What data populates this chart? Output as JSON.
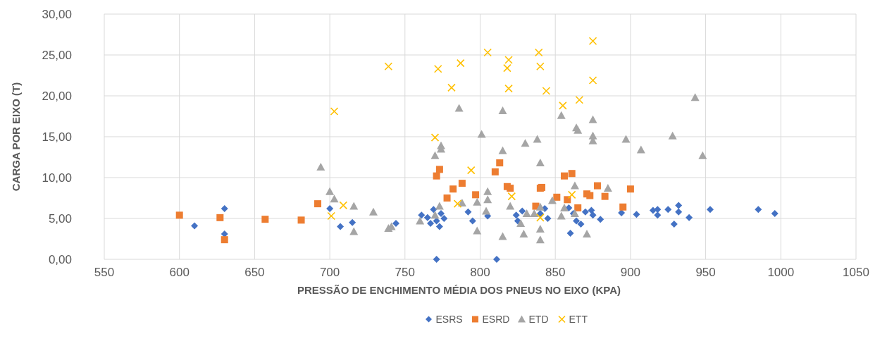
{
  "chart_data": {
    "type": "scatter",
    "xlabel": "PRESSÃO DE ENCHIMENTO MÉDIA DOS PNEUS NO EIXO (KPA)",
    "ylabel": "CARGA POR EIXO (T)",
    "xlim": [
      550,
      1050
    ],
    "xticks": [
      550,
      600,
      650,
      700,
      750,
      800,
      850,
      900,
      950,
      1000,
      1050
    ],
    "ylim": [
      0,
      30
    ],
    "yticks": [
      {
        "value": 0,
        "label": "0,00"
      },
      {
        "value": 5,
        "label": "5,00"
      },
      {
        "value": 10,
        "label": "10,00"
      },
      {
        "value": 15,
        "label": "15,00"
      },
      {
        "value": 20,
        "label": "20,00"
      },
      {
        "value": 25,
        "label": "25,00"
      },
      {
        "value": 30,
        "label": "30,00"
      }
    ],
    "grid": true,
    "legend": "bottom",
    "series": [
      {
        "name": "ESRS",
        "color": "#4472c4",
        "marker": "diamond",
        "x": [
          610,
          630,
          630,
          700,
          707,
          715,
          744,
          761,
          765,
          767,
          769,
          771,
          773,
          774,
          776,
          771,
          811,
          792,
          795,
          805,
          824,
          825,
          828,
          840,
          843,
          845,
          859,
          860,
          862,
          864,
          867,
          870,
          874,
          875,
          880,
          894,
          904,
          915,
          918,
          918,
          925,
          929,
          932,
          932,
          939,
          953,
          985,
          996
        ],
        "values": [
          4.1,
          6.2,
          3.1,
          6.2,
          4.0,
          4.5,
          4.4,
          5.4,
          5.1,
          4.4,
          6.1,
          4.7,
          4.0,
          5.6,
          5.0,
          0,
          0,
          5.8,
          4.7,
          5.3,
          5.4,
          4.7,
          5.9,
          5.6,
          6.2,
          5.0,
          6.3,
          3.2,
          5.6,
          4.7,
          4.3,
          5.8,
          6.0,
          5.4,
          4.9,
          5.7,
          5.5,
          6.0,
          6.1,
          5.4,
          6.1,
          4.3,
          6.6,
          5.8,
          5.1,
          6.1,
          6.1,
          5.6
        ]
      },
      {
        "name": "ESRD",
        "color": "#ed7d31",
        "marker": "square",
        "x": [
          600,
          627,
          630,
          657,
          681,
          692,
          771,
          773,
          778,
          782,
          788,
          797,
          810,
          813,
          818,
          820,
          840,
          841,
          837,
          851,
          856,
          861,
          858,
          865,
          871,
          873,
          878,
          883,
          900,
          895
        ],
        "values": [
          5.4,
          5.1,
          2.4,
          4.9,
          4.8,
          6.8,
          10.2,
          11.0,
          7.5,
          8.6,
          9.3,
          7.9,
          10.7,
          11.8,
          8.9,
          8.7,
          8.7,
          8.8,
          6.5,
          7.6,
          10.2,
          10.5,
          7.3,
          6.3,
          8.0,
          7.8,
          9.0,
          7.7,
          8.6,
          6.4
        ]
      },
      {
        "name": "ETD",
        "color": "#a5a5a5",
        "marker": "triangle",
        "x": [
          694,
          700,
          703,
          716,
          716,
          729,
          739,
          741,
          760,
          770,
          770,
          773,
          774,
          774,
          786,
          788,
          798,
          798,
          801,
          804,
          805,
          805,
          815,
          815,
          815,
          820,
          827,
          829,
          830,
          831,
          836,
          838,
          840,
          840,
          840,
          840,
          848,
          854,
          854,
          856,
          863,
          863,
          864,
          865,
          871,
          875,
          875,
          875,
          885,
          897,
          907,
          928,
          943,
          948
        ],
        "values": [
          11.3,
          8.3,
          7.4,
          6.5,
          3.4,
          5.8,
          3.8,
          4.0,
          4.7,
          12.7,
          5.4,
          6.5,
          13.9,
          13.5,
          18.5,
          6.9,
          7.0,
          3.5,
          15.3,
          5.9,
          8.3,
          7.3,
          18.2,
          13.3,
          2.8,
          6.5,
          4.4,
          3.1,
          14.2,
          5.6,
          5.6,
          14.7,
          11.8,
          6.4,
          3.7,
          2.4,
          7.2,
          17.6,
          5.3,
          6.3,
          9.0,
          5.6,
          16.1,
          15.8,
          3.1,
          17.1,
          15.1,
          14.5,
          8.7,
          14.7,
          13.4,
          15.1,
          19.8,
          12.7
        ]
      },
      {
        "name": "ETT",
        "color": "#ffc000",
        "marker": "cross",
        "x": [
          703,
          709,
          701,
          739,
          770,
          772,
          781,
          785,
          787,
          794,
          805,
          818,
          819,
          819,
          821,
          839,
          840,
          840,
          844,
          855,
          861,
          866,
          875,
          875
        ],
        "values": [
          18.1,
          6.6,
          5.3,
          23.6,
          14.9,
          23.3,
          21.0,
          6.8,
          24.0,
          10.9,
          25.3,
          23.4,
          24.4,
          20.9,
          7.7,
          25.3,
          23.6,
          5.1,
          20.6,
          18.8,
          7.9,
          19.5,
          26.7,
          21.9
        ]
      }
    ]
  }
}
